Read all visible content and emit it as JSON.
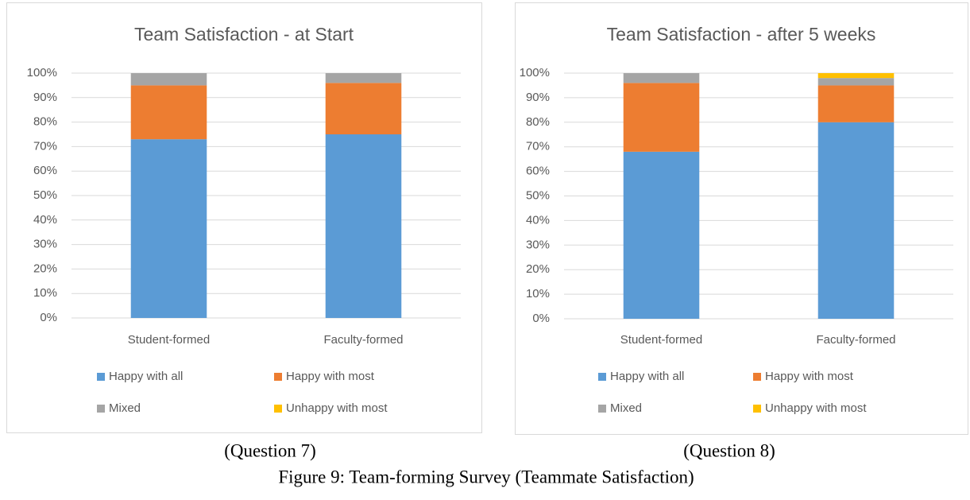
{
  "chart_data": [
    {
      "type": "stacked_bar",
      "title": "Team Satisfaction - at Start",
      "categories": [
        "Student-formed",
        "Faculty-formed"
      ],
      "series": [
        {
          "name": "Happy with all",
          "color": "#5b9bd5",
          "values": [
            73,
            75
          ]
        },
        {
          "name": "Happy with most",
          "color": "#ed7d31",
          "values": [
            22,
            21
          ]
        },
        {
          "name": "Mixed",
          "color": "#a5a5a5",
          "values": [
            5,
            4
          ]
        },
        {
          "name": "Unhappy with most",
          "color": "#ffc000",
          "values": [
            0,
            0
          ]
        }
      ],
      "ylim": [
        0,
        100
      ],
      "yticks": [
        {
          "value": 0,
          "label": "0%"
        },
        {
          "value": 10,
          "label": "10%"
        },
        {
          "value": 20,
          "label": "20%"
        },
        {
          "value": 30,
          "label": "30%"
        },
        {
          "value": 40,
          "label": "40%"
        },
        {
          "value": 50,
          "label": "50%"
        },
        {
          "value": 60,
          "label": "60%"
        },
        {
          "value": 70,
          "label": "70%"
        },
        {
          "value": 80,
          "label": "80%"
        },
        {
          "value": 90,
          "label": "90%"
        },
        {
          "value": 100,
          "label": "100%"
        }
      ],
      "grid": true,
      "legend": "bottom"
    },
    {
      "type": "stacked_bar",
      "title": "Team Satisfaction - after 5 weeks",
      "categories": [
        "Student-formed",
        "Faculty-formed"
      ],
      "series": [
        {
          "name": "Happy with all",
          "color": "#5b9bd5",
          "values": [
            68,
            80
          ]
        },
        {
          "name": "Happy with most",
          "color": "#ed7d31",
          "values": [
            28,
            15
          ]
        },
        {
          "name": "Mixed",
          "color": "#a5a5a5",
          "values": [
            4,
            3
          ]
        },
        {
          "name": "Unhappy with most",
          "color": "#ffc000",
          "values": [
            0,
            2
          ]
        }
      ],
      "ylim": [
        0,
        100
      ],
      "yticks": [
        {
          "value": 0,
          "label": "0%"
        },
        {
          "value": 10,
          "label": "10%"
        },
        {
          "value": 20,
          "label": "20%"
        },
        {
          "value": 30,
          "label": "30%"
        },
        {
          "value": 40,
          "label": "40%"
        },
        {
          "value": 50,
          "label": "50%"
        },
        {
          "value": 60,
          "label": "60%"
        },
        {
          "value": 70,
          "label": "70%"
        },
        {
          "value": 80,
          "label": "80%"
        },
        {
          "value": 90,
          "label": "90%"
        },
        {
          "value": 100,
          "label": "100%"
        }
      ],
      "grid": true,
      "legend": "bottom"
    }
  ],
  "captions": [
    "(Question 7)",
    "(Question 8)"
  ],
  "figure_caption": "Figure 9: Team-forming Survey (Teammate Satisfaction)"
}
